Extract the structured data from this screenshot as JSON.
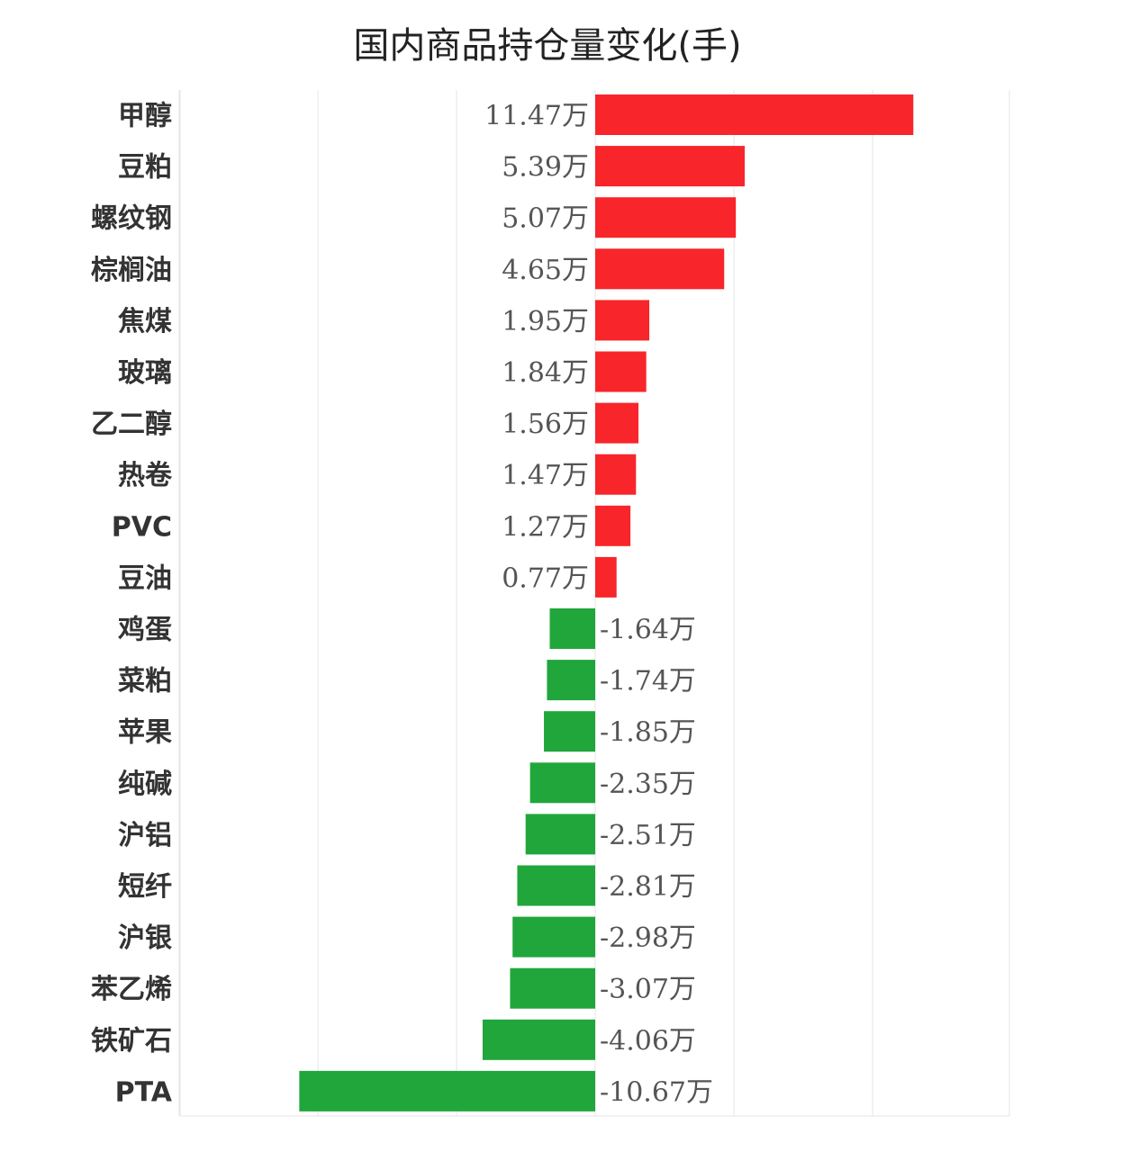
{
  "chart_data": {
    "type": "bar",
    "orientation": "horizontal",
    "title": "国内商品持仓量变化(手)",
    "unit": "万",
    "categories": [
      "甲醇",
      "豆粕",
      "螺纹钢",
      "棕榈油",
      "焦煤",
      "玻璃",
      "乙二醇",
      "热卷",
      "PVC",
      "豆油",
      "鸡蛋",
      "菜粕",
      "苹果",
      "纯碱",
      "沪铝",
      "短纤",
      "沪银",
      "苯乙烯",
      "铁矿石",
      "PTA"
    ],
    "values": [
      11.47,
      5.39,
      5.07,
      4.65,
      1.95,
      1.84,
      1.56,
      1.47,
      1.27,
      0.77,
      -1.64,
      -1.74,
      -1.85,
      -2.35,
      -2.51,
      -2.81,
      -2.98,
      -3.07,
      -4.06,
      -10.67
    ],
    "value_labels": [
      "11.47万",
      "5.39万",
      "5.07万",
      "4.65万",
      "1.95万",
      "1.84万",
      "1.56万",
      "1.47万",
      "1.27万",
      "0.77万",
      "-1.64万",
      "-1.74万",
      "-1.85万",
      "-2.35万",
      "-2.51万",
      "-2.81万",
      "-2.98万",
      "-3.07万",
      "-4.06万",
      "-10.67万"
    ],
    "xlim": [
      -15,
      15
    ],
    "grid": true,
    "colors": {
      "positive": "#f8252a",
      "negative": "#21a63c"
    }
  }
}
